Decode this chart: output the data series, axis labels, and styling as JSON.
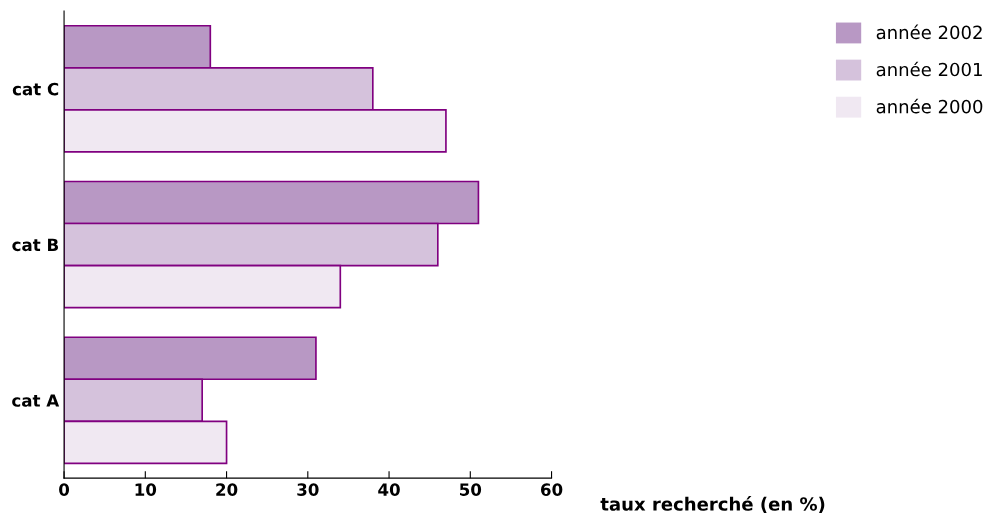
{
  "chart_data": {
    "type": "bar",
    "orientation": "horizontal",
    "xlabel": "taux recherché (en %)",
    "categories": [
      "cat C",
      "cat B",
      "cat A"
    ],
    "series": [
      {
        "name": "année 2002",
        "color": "#b898c4",
        "values": [
          18,
          51,
          31
        ]
      },
      {
        "name": "année 2001",
        "color": "#d5c2dc",
        "values": [
          38,
          46,
          17
        ]
      },
      {
        "name": "année 2000",
        "color": "#f0e8f2",
        "values": [
          47,
          34,
          20
        ]
      }
    ],
    "xlim": [
      0,
      60
    ],
    "xticks": [
      0,
      10,
      20,
      30,
      40,
      50,
      60
    ],
    "grid": false,
    "legend": "top right"
  }
}
